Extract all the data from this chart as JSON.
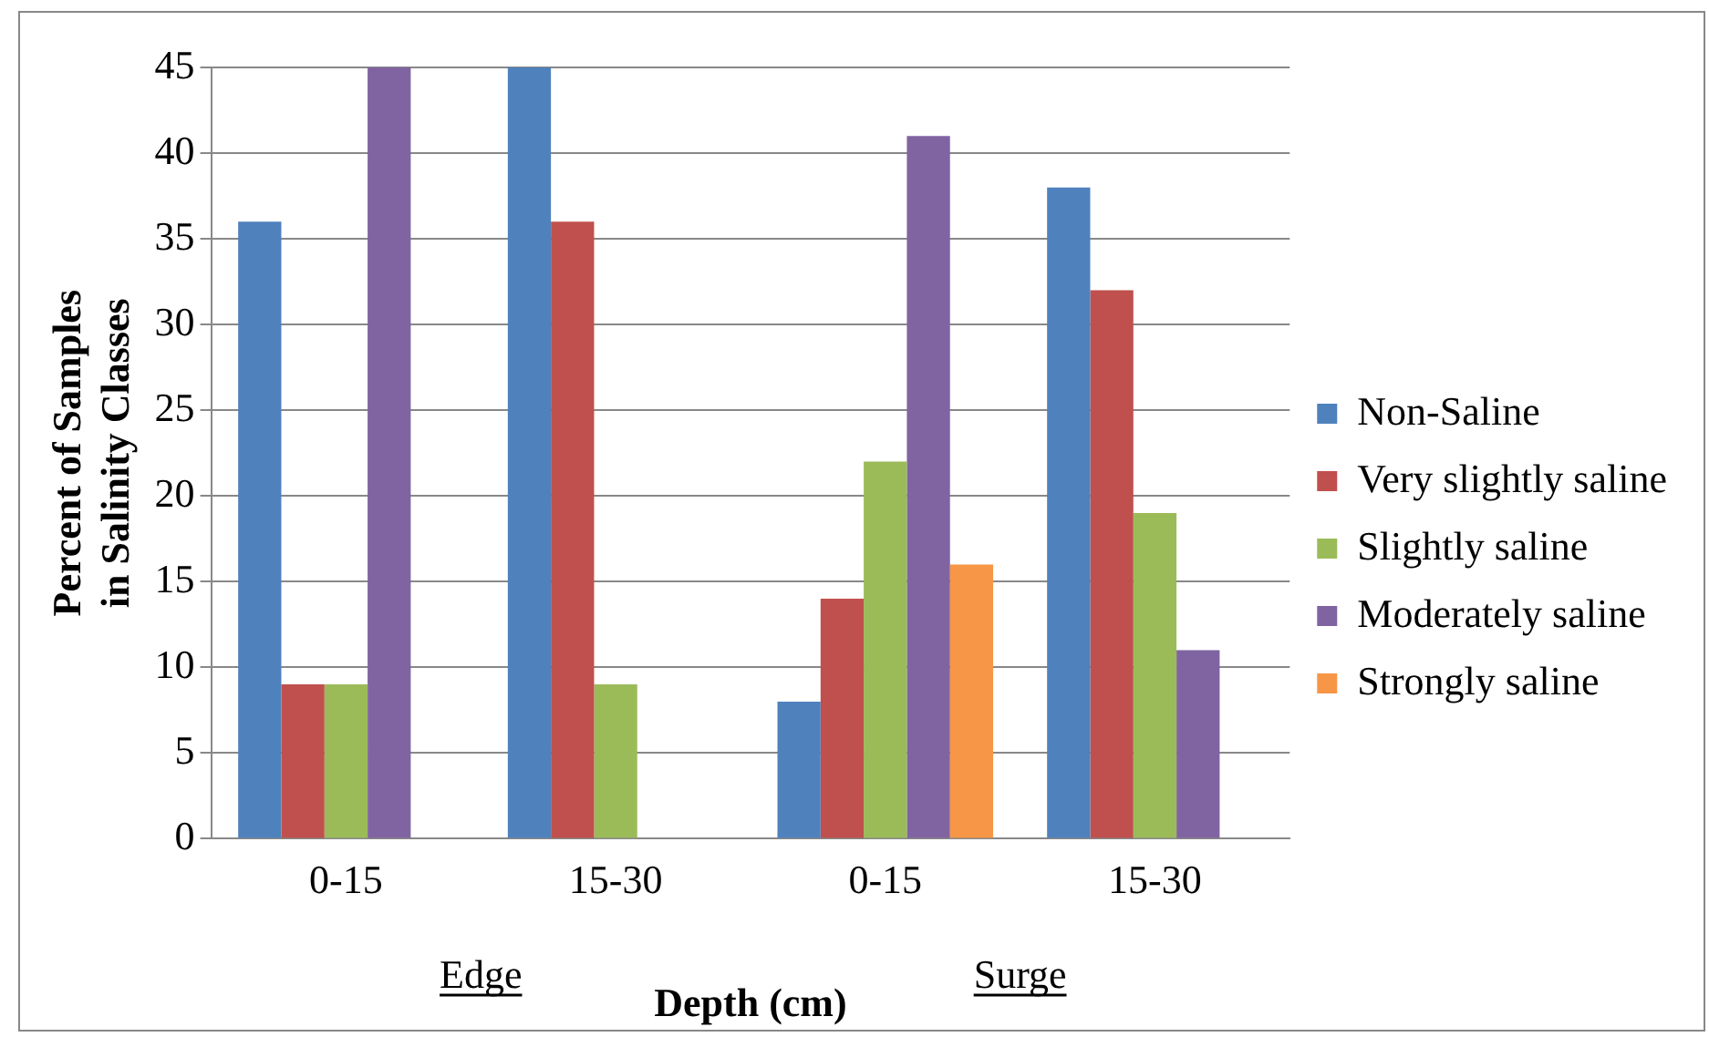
{
  "chart_data": {
    "type": "bar",
    "xlabel": "Depth (cm)",
    "ylabel": "Percent of Samples in Salinity Classes",
    "categories": [
      "0-15",
      "15-30",
      "0-15",
      "15-30"
    ],
    "series": [
      {
        "name": "Non-Saline",
        "color": "#4f81bd",
        "values": [
          36,
          45,
          8,
          38
        ]
      },
      {
        "name": "Very slightly saline",
        "color": "#c0504d",
        "values": [
          9,
          36,
          14,
          32
        ]
      },
      {
        "name": "Slightly saline",
        "color": "#9bbb59",
        "values": [
          9,
          9,
          22,
          19
        ]
      },
      {
        "name": "Moderately saline",
        "color": "#8064a2",
        "values": [
          45,
          null,
          41,
          11
        ]
      },
      {
        "name": "Strongly saline",
        "color": "#f79646",
        "values": [
          null,
          null,
          16,
          null
        ]
      }
    ],
    "annotations": [
      "Edge",
      "Surge"
    ],
    "ylim": [
      0,
      45
    ],
    "yticks": [
      0,
      5,
      10,
      15,
      20,
      25,
      30,
      35,
      40,
      45
    ],
    "grid": "y",
    "legend": "right"
  }
}
